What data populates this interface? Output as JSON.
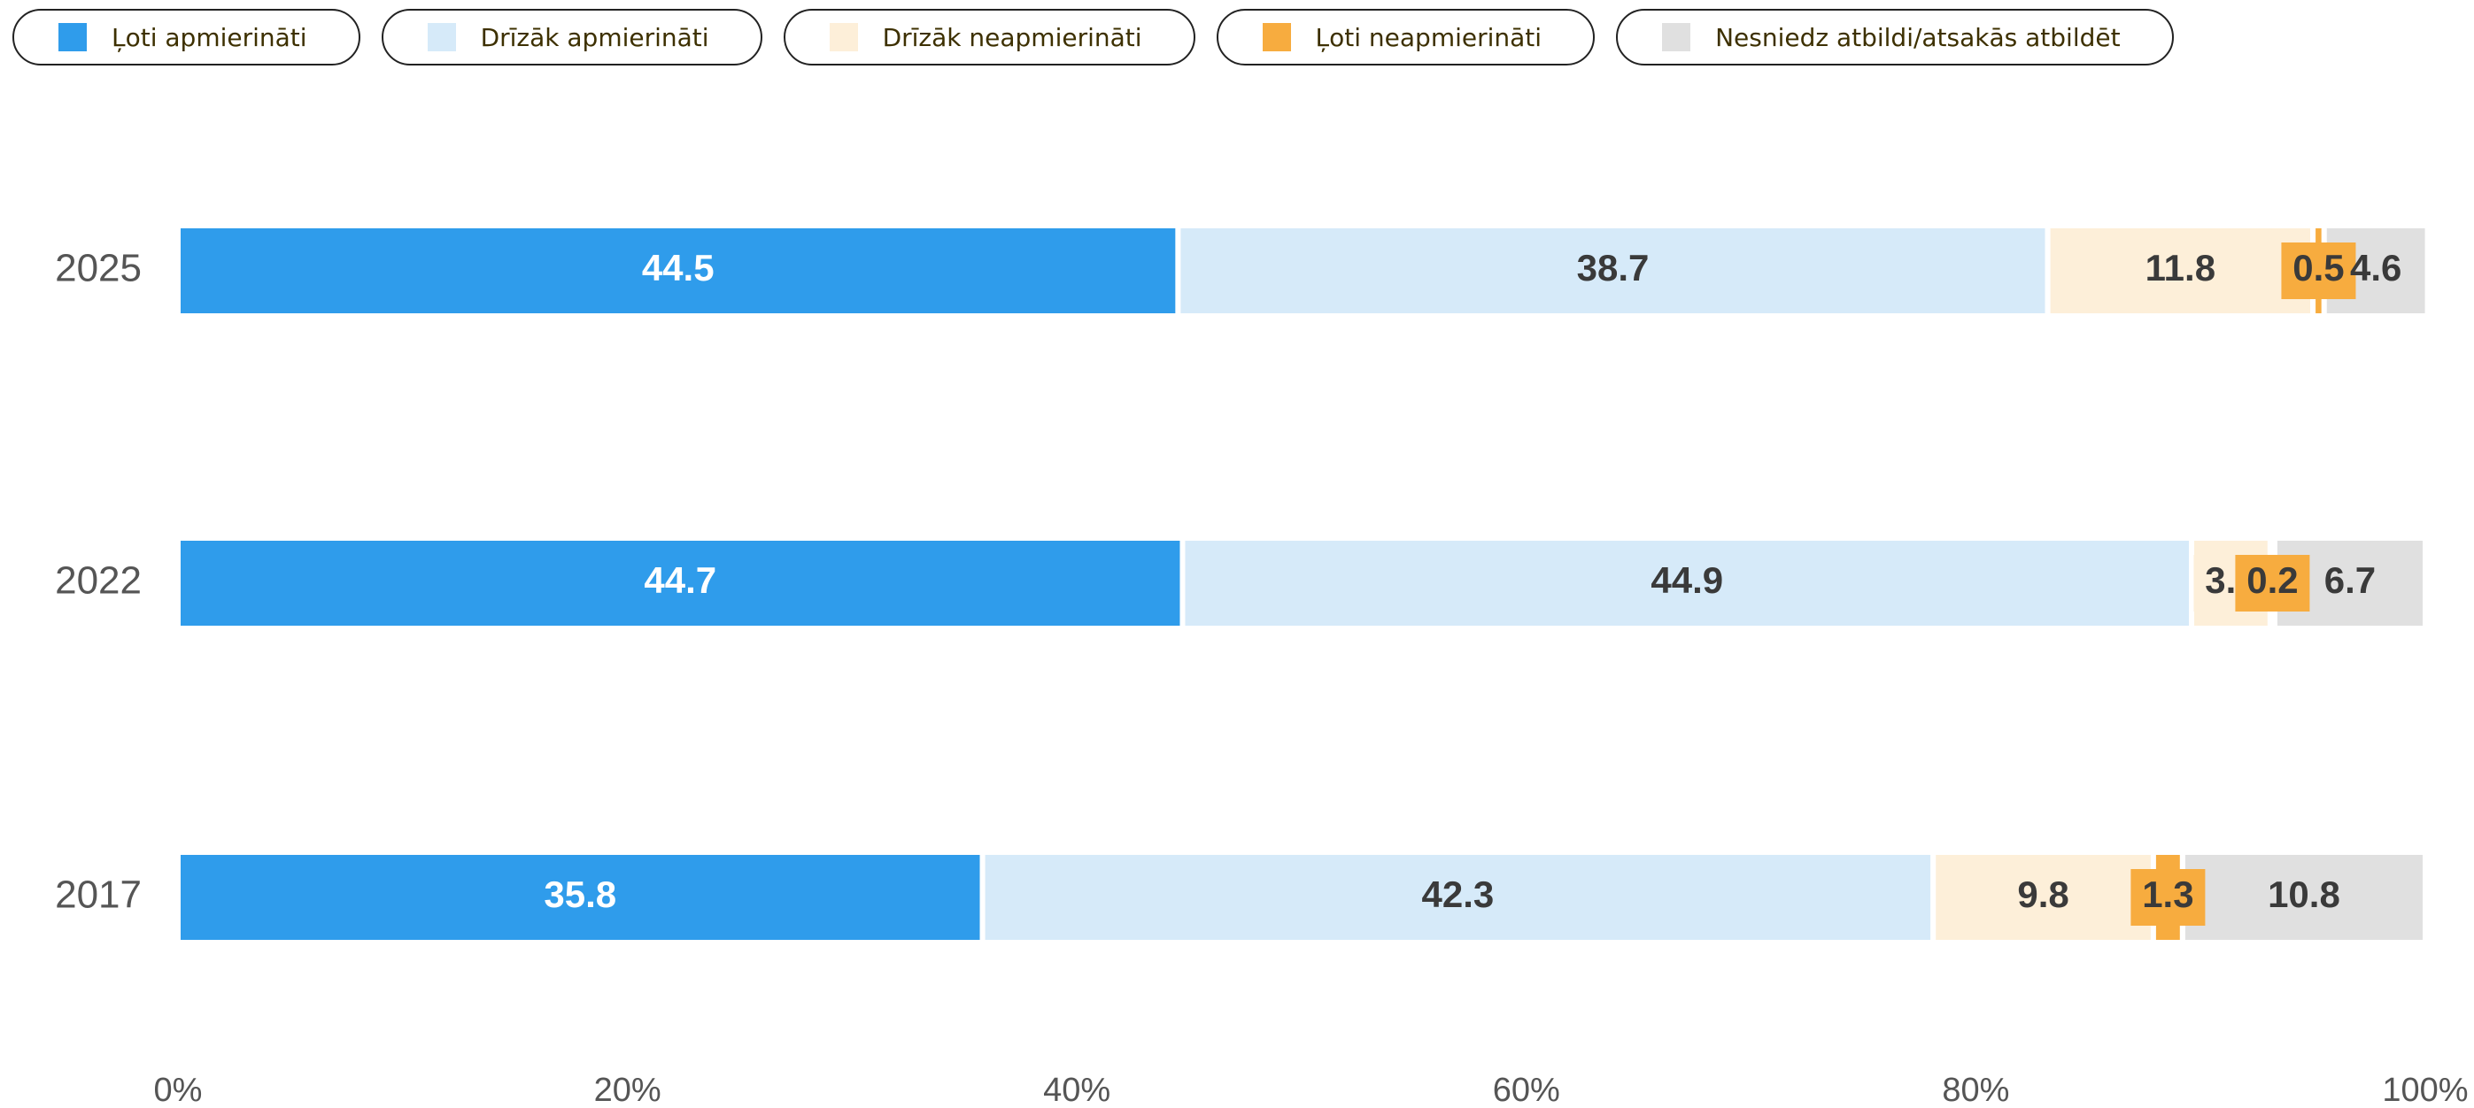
{
  "chart_data": {
    "type": "stacked-bar-horizontal",
    "categories": [
      "2025",
      "2022",
      "2017"
    ],
    "series": [
      {
        "name": "Ļoti apmierināti",
        "color": "#2f9ceb",
        "values": [
          44.5,
          44.7,
          35.8
        ]
      },
      {
        "name": "Drīzāk apmierināti",
        "color": "#d6eaf9",
        "values": [
          38.7,
          44.9,
          42.3
        ]
      },
      {
        "name": "Drīzāk neapmierināti",
        "color": "#fdefd9",
        "values": [
          11.8,
          3.5,
          9.8
        ]
      },
      {
        "name": "Ļoti neapmierināti",
        "color": "#f7ac3f",
        "values": [
          0.5,
          0.2,
          1.3
        ]
      },
      {
        "name": "Nesniedz atbildi/atsakās atbildēt",
        "color": "#e0e0e0",
        "values": [
          4.6,
          6.7,
          10.8
        ]
      }
    ],
    "xlim": [
      0,
      100
    ],
    "xticks": [
      {
        "value": 0,
        "label": "0%"
      },
      {
        "value": 20,
        "label": "20%"
      },
      {
        "value": 40,
        "label": "40%"
      },
      {
        "value": 60,
        "label": "60%"
      },
      {
        "value": 80,
        "label": "80%"
      },
      {
        "value": 100,
        "label": "100%"
      }
    ]
  }
}
